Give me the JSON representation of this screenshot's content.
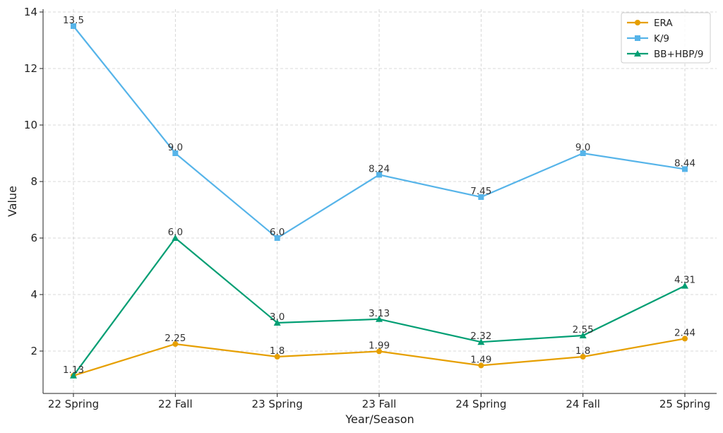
{
  "chart_data": {
    "type": "line",
    "title": "",
    "xlabel": "Year/Season",
    "ylabel": "Value",
    "categories": [
      "22 Spring",
      "22 Fall",
      "23 Spring",
      "23 Fall",
      "24 Spring",
      "24 Fall",
      "25 Spring"
    ],
    "ylim": [
      0.5,
      14.1
    ],
    "yticks": [
      2,
      4,
      6,
      8,
      10,
      12,
      14
    ],
    "grid": true,
    "legend_position": "top-right",
    "series": [
      {
        "name": "ERA",
        "color": "#E69F00",
        "marker": "circle",
        "values": [
          1.13,
          2.25,
          1.8,
          1.99,
          1.49,
          1.8,
          2.44
        ],
        "labels": [
          "1.13",
          "2.25",
          "1.8",
          "1.99",
          "1.49",
          "1.8",
          "2.44"
        ]
      },
      {
        "name": "K/9",
        "color": "#56B4E9",
        "marker": "square",
        "values": [
          13.5,
          9.0,
          6.0,
          8.24,
          7.45,
          9.0,
          8.44
        ],
        "labels": [
          "13.5",
          "9.0",
          "6.0",
          "8.24",
          "7.45",
          "9.0",
          "8.44"
        ]
      },
      {
        "name": "BB+HBP/9",
        "color": "#009E73",
        "marker": "triangle",
        "values": [
          1.13,
          6.0,
          3.0,
          3.13,
          2.32,
          2.55,
          4.31
        ],
        "labels": [
          "",
          "6.0",
          "3.0",
          "3.13",
          "2.32",
          "2.55",
          "4.31"
        ]
      }
    ]
  }
}
